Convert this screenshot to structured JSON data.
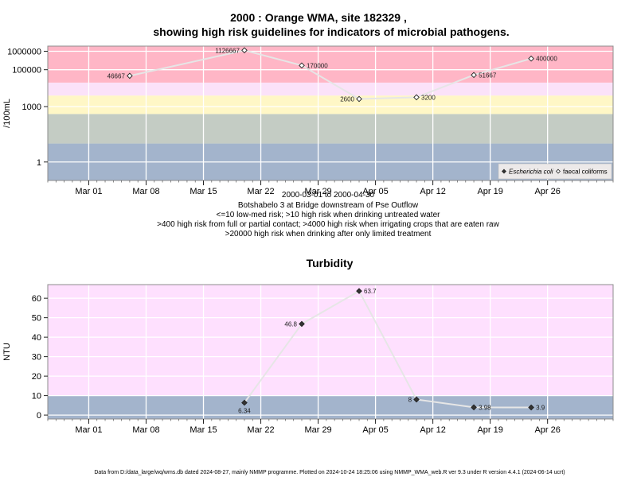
{
  "header": {
    "title_line1": "2000 : Orange WMA, site 182329 ,",
    "title_line2": "showing high risk guidelines for indicators of microbial pathogens."
  },
  "info": {
    "line1": "2000-03-01 to 2000-04-30",
    "line2": "Botshabelo 3 at Bridge downstream of Pse Outflow",
    "line3": "<=10 low-med risk; >10 high risk when drinking untreated water",
    "line4": ">400 high risk from full or partial contact; >4000 high risk when irrigating crops that are eaten raw",
    "line5": ">20000 high risk when drinking after only limited treatment"
  },
  "footer": {
    "text": "Data from D:/data_large/wq/wms.db dated 2024-08-27, mainly NMMP programme. Plotted on 2024-10-24 18:25:06 using NMMP_WMA_web.R ver 9.3 under R version 4.4.1 (2024-06-14 ucrt)"
  },
  "colors": {
    "band_blue": "#a3b4cc",
    "band_grey": "#c4ccc4",
    "band_yellow": "#fff7c6",
    "band_lightpink": "#fbe2f9",
    "band_pink": "#ffb6c6",
    "turb_pink": "#fee0fe",
    "line": "#e6e6e6"
  },
  "chart_data": [
    {
      "type": "line",
      "title": "",
      "ylabel": "/100mL",
      "xlabel": "",
      "yscale": "log",
      "x_tick_labels": [
        "Mar 01",
        "Mar 08",
        "Mar 15",
        "Mar 22",
        "Mar 29",
        "Apr 05",
        "Apr 12",
        "Apr 19",
        "Apr 26"
      ],
      "x_tick_dates": [
        "2000-03-01",
        "2000-03-08",
        "2000-03-15",
        "2000-03-22",
        "2000-03-29",
        "2000-04-05",
        "2000-04-12",
        "2000-04-19",
        "2000-04-26"
      ],
      "xlim": [
        "2000-02-25",
        "2000-05-04"
      ],
      "y_ticks": [
        1,
        1000,
        100000,
        1000000
      ],
      "y_tick_labels": [
        "1",
        "1000",
        "100000",
        "1000000"
      ],
      "ylim": [
        0.1,
        1900000
      ],
      "bands": [
        {
          "from": 0.1,
          "to": 10,
          "color": "#a3b4cc"
        },
        {
          "from": 10,
          "to": 400,
          "color": "#c4ccc4"
        },
        {
          "from": 400,
          "to": 4000,
          "color": "#fff7c6"
        },
        {
          "from": 4000,
          "to": 20000,
          "color": "#fbe2f9"
        },
        {
          "from": 20000,
          "to": 1900000,
          "color": "#ffb6c6"
        }
      ],
      "legend": {
        "placement": "bottom-right",
        "entries": [
          {
            "label": "Escherichia coli",
            "marker": "filled-diamond",
            "italic": true
          },
          {
            "label": "faecal coliforms",
            "marker": "open-diamond",
            "italic": false
          }
        ]
      },
      "series": [
        {
          "name": "faecal coliforms",
          "marker": "open-diamond",
          "points": [
            {
              "x": "2000-03-06",
              "y": 46667,
              "label": "46667",
              "label_side": "left"
            },
            {
              "x": "2000-03-20",
              "y": 1126667,
              "label": "1126667",
              "label_side": "left"
            },
            {
              "x": "2000-03-27",
              "y": 170000,
              "label": "170000",
              "label_side": "right"
            },
            {
              "x": "2000-04-03",
              "y": 2600,
              "label": "2600",
              "label_side": "left"
            },
            {
              "x": "2000-04-10",
              "y": 3200,
              "label": "3200",
              "label_side": "right"
            },
            {
              "x": "2000-04-17",
              "y": 51667,
              "label": "51667",
              "label_side": "right"
            },
            {
              "x": "2000-04-24",
              "y": 400000,
              "label": "400000",
              "label_side": "right"
            }
          ]
        }
      ]
    },
    {
      "type": "line",
      "title": "Turbidity",
      "ylabel": "NTU",
      "xlabel": "",
      "yscale": "linear",
      "x_tick_labels": [
        "Mar 01",
        "Mar 08",
        "Mar 15",
        "Mar 22",
        "Mar 29",
        "Apr 05",
        "Apr 12",
        "Apr 19",
        "Apr 26"
      ],
      "x_tick_dates": [
        "2000-03-01",
        "2000-03-08",
        "2000-03-15",
        "2000-03-22",
        "2000-03-29",
        "2000-04-05",
        "2000-04-12",
        "2000-04-19",
        "2000-04-26"
      ],
      "xlim": [
        "2000-02-25",
        "2000-05-04"
      ],
      "y_ticks": [
        0,
        10,
        20,
        30,
        40,
        50,
        60
      ],
      "y_tick_labels": [
        "0",
        "10",
        "20",
        "30",
        "40",
        "50",
        "60"
      ],
      "ylim": [
        -2,
        67
      ],
      "bands": [
        {
          "from": -2,
          "to": 10,
          "color": "#a3b4cc"
        },
        {
          "from": 10,
          "to": 67,
          "color": "#fee0fe"
        }
      ],
      "series": [
        {
          "name": "",
          "marker": "filled-diamond",
          "points": [
            {
              "x": "2000-03-20",
              "y": 6.34,
              "label": "6.34",
              "label_side": "below"
            },
            {
              "x": "2000-03-27",
              "y": 46.8,
              "label": "46.8",
              "label_side": "left"
            },
            {
              "x": "2000-04-03",
              "y": 63.7,
              "label": "63.7",
              "label_side": "right"
            },
            {
              "x": "2000-04-10",
              "y": 8,
              "label": "8",
              "label_side": "left"
            },
            {
              "x": "2000-04-17",
              "y": 3.98,
              "label": "3.98",
              "label_side": "right"
            },
            {
              "x": "2000-04-24",
              "y": 3.9,
              "label": "3.9",
              "label_side": "right"
            }
          ]
        }
      ]
    }
  ]
}
